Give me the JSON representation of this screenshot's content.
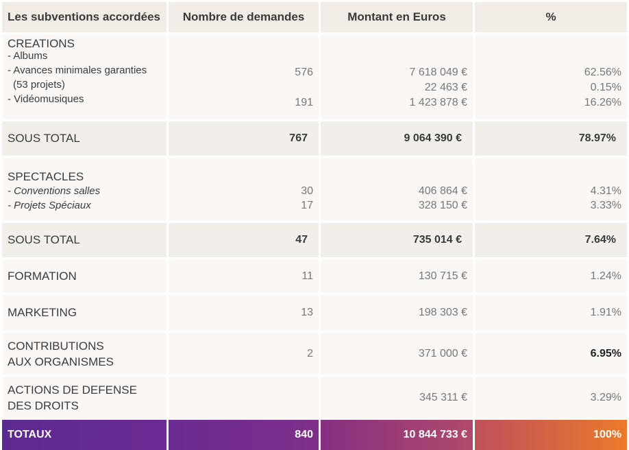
{
  "header": {
    "col1": "Les subventions accordées",
    "col2": "Nombre de demandes",
    "col3": "Montant en Euros",
    "col4": "%"
  },
  "creations": {
    "title": "CREATIONS",
    "sub1": "- Albums",
    "sub2": "- Avances minimales garanties",
    "sub2b": "(53 projets)",
    "sub3": "- Vidéomusiques",
    "n1": "576",
    "n3": "191",
    "m1": "7 618 049 €",
    "m2": "22 463 €",
    "m3": "1 423 878 €",
    "p1": "62.56%",
    "p2": "0.15%",
    "p3": "16.26%"
  },
  "subtotal1": {
    "label": "SOUS TOTAL",
    "n": "767",
    "m": "9 064 390 €",
    "p": "78.97%"
  },
  "spectacles": {
    "title": "SPECTACLES",
    "sub1": "- Conventions salles",
    "sub2": "- Projets Spéciaux",
    "n1": "30",
    "n2": "17",
    "m1": "406 864 €",
    "m2": "328 150 €",
    "p1": "4.31%",
    "p2": "3.33%"
  },
  "subtotal2": {
    "label": "SOUS TOTAL",
    "n": "47",
    "m": "735 014 €",
    "p": "7.64%"
  },
  "formation": {
    "label": "FORMATION",
    "n": "11",
    "m": "130 715 €",
    "p": "1.24%"
  },
  "marketing": {
    "label": "MARKETING",
    "n": "13",
    "m": "198 303 €",
    "p": "1.91%"
  },
  "contributions": {
    "label1": "CONTRIBUTIONS",
    "label2": "AUX ORGANISMES",
    "n": "2",
    "m": "371 000 €",
    "p": "6.95%"
  },
  "actions": {
    "label1": "ACTIONS DE DEFENSE",
    "label2": "DES DROITS",
    "m": "345 311 €",
    "p": "3.29%"
  },
  "totaux": {
    "label": "TOTAUX",
    "n": "840",
    "m": "10 844 733 €",
    "p": "100%"
  }
}
